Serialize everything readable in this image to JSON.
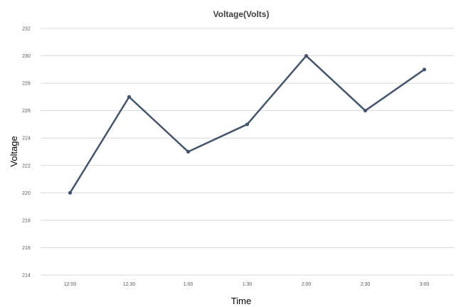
{
  "chart_data": {
    "type": "line",
    "title": "Voltage(Volts)",
    "xlabel": "Time",
    "ylabel": "Voltage",
    "categories": [
      "12:00",
      "12:30",
      "1:00",
      "1:30",
      "2:00",
      "2:30",
      "3:00"
    ],
    "series": [
      {
        "values": [
          220,
          227,
          223,
          225,
          230,
          226,
          229
        ]
      }
    ],
    "ylim": [
      214,
      232
    ],
    "yticks": [
      "214",
      "216",
      "218",
      "220",
      "222",
      "224",
      "226",
      "228",
      "230",
      "232"
    ],
    "grid": true,
    "legend": "none",
    "colors": {
      "line": "#44546a"
    }
  }
}
